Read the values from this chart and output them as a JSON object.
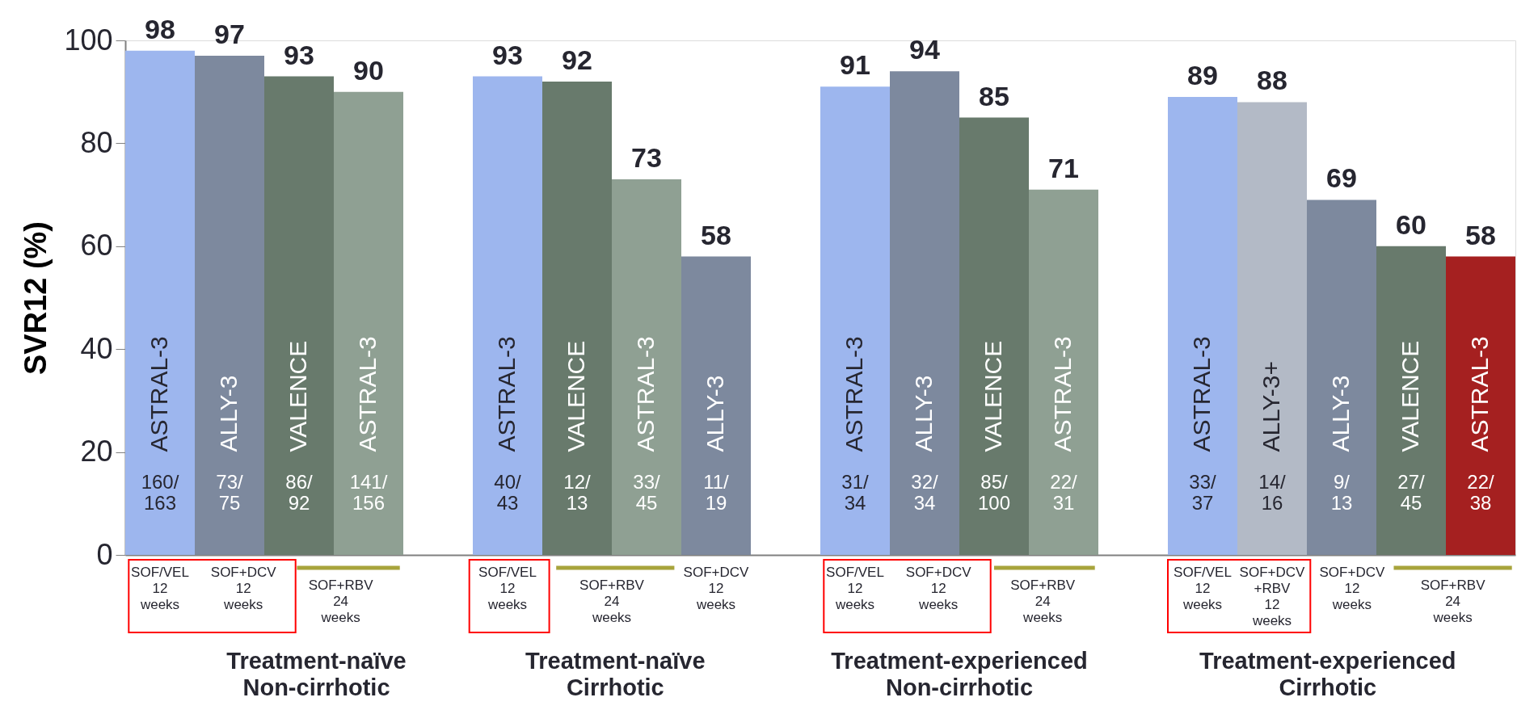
{
  "chart_data": {
    "type": "bar",
    "ylabel": "SVR12 (%)",
    "categories": [
      "ASTRAL-3",
      "ALLY-3",
      "VALENCE",
      "ASTRAL-3",
      null,
      "ASTRAL-3",
      "VALENCE",
      "ASTRAL-3",
      "ALLY-3",
      null,
      "ASTRAL-3",
      "ALLY-3",
      "VALENCE",
      "ASTRAL-3",
      null,
      "ASTRAL-3",
      "ALLY-3+",
      "ALLY-3",
      "VALENCE",
      "ASTRAL-3"
    ],
    "values": [
      98,
      97,
      93,
      90,
      null,
      93,
      92,
      73,
      58,
      null,
      91,
      94,
      85,
      71,
      null,
      89,
      88,
      69,
      60,
      58
    ],
    "colors": [
      "#9db6ee",
      "#7d899e",
      "#687a6c",
      "#8fa093",
      null,
      "#9db6ee",
      "#687a6c",
      "#8fa093",
      "#7d899e",
      null,
      "#9db6ee",
      "#7d899e",
      "#687a6c",
      "#8fa093",
      null,
      "#9db6ee",
      "#b3bac6",
      "#7d899e",
      "#687a6c",
      "#a52020"
    ],
    "data_labels": true,
    "ylim": [
      0,
      100
    ],
    "yticks": [
      0,
      20,
      40,
      60,
      80,
      100
    ],
    "grid": false,
    "tick_labels": "y",
    "annotations": [
      "160/\n163",
      "73/\n75",
      "86/\n92",
      "141/\n156",
      "40/\n43",
      "12/\n13",
      "33/\n45",
      "11/\n19",
      "31/\n34",
      "32/\n34",
      "85/\n100",
      "22/\n31",
      "33/\n37",
      "14/\n16",
      "9/\n13",
      "27/\n45",
      "22/\n38",
      "SOF/VEL\n12\nweeks",
      "SOF+DCV\n12\nweeks",
      "SOF+RBV\n24\nweeks",
      "SOF/VEL\n12\nweeks",
      "SOF+RBV\n24\nweeks",
      "SOF+DCV\n12\nweeks",
      "SOF/VEL\n12\nweeks",
      "SOF+DCV\n12\nweeks",
      "SOF+RBV\n24\nweeks",
      "SOF/VEL\n12\nweeks",
      "SOF+DCV\n+RBV\n12\nweeks",
      "SOF+DCV\n12\nweeks",
      "SOF+RBV\n24\nweeks",
      "Treatment-naïve\nNon-cirrhotic",
      "Treatment-naïve\nCirrhotic",
      "Treatment-experienced\nNon-cirrhotic",
      "Treatment-experienced\nCirrhotic"
    ]
  }
}
